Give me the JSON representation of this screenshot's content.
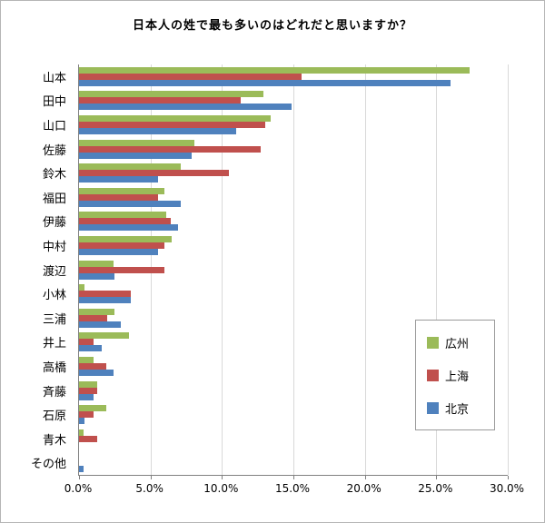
{
  "chart_data": {
    "type": "bar",
    "orientation": "horizontal",
    "title": "日本人の姓で最も多いのはどれだと思いますか？",
    "categories": [
      "山本",
      "田中",
      "山口",
      "佐藤",
      "鈴木",
      "福田",
      "伊藤",
      "中村",
      "渡辺",
      "小林",
      "三浦",
      "井上",
      "高橋",
      "斉藤",
      "石原",
      "青木",
      "その他"
    ],
    "series": [
      {
        "name": "広州",
        "color": "#9BBB59",
        "values": [
          27.3,
          12.9,
          13.4,
          8.1,
          7.1,
          6.0,
          6.1,
          6.5,
          2.4,
          0.4,
          2.5,
          3.5,
          1.0,
          1.3,
          1.9,
          0.3,
          0.0
        ]
      },
      {
        "name": "上海",
        "color": "#C0504D",
        "values": [
          15.6,
          11.3,
          13.0,
          12.7,
          10.5,
          5.5,
          6.4,
          6.0,
          6.0,
          3.6,
          2.0,
          1.0,
          1.9,
          1.3,
          1.0,
          1.3,
          0.0
        ]
      },
      {
        "name": "北京",
        "color": "#4F81BD",
        "values": [
          26.0,
          14.9,
          11.0,
          7.9,
          5.5,
          7.1,
          6.9,
          5.5,
          2.5,
          3.6,
          2.9,
          1.6,
          2.4,
          1.0,
          0.4,
          0.0,
          0.3
        ]
      }
    ],
    "xlabel": "",
    "ylabel": "",
    "xlim": [
      0,
      30
    ],
    "x_ticks": [
      "0.0%",
      "5.0%",
      "10.0%",
      "15.0%",
      "20.0%",
      "25.0%",
      "30.0%"
    ],
    "x_tick_values": [
      0,
      5,
      10,
      15,
      20,
      25,
      30
    ],
    "grid": true,
    "legend_position": "inside-right"
  }
}
